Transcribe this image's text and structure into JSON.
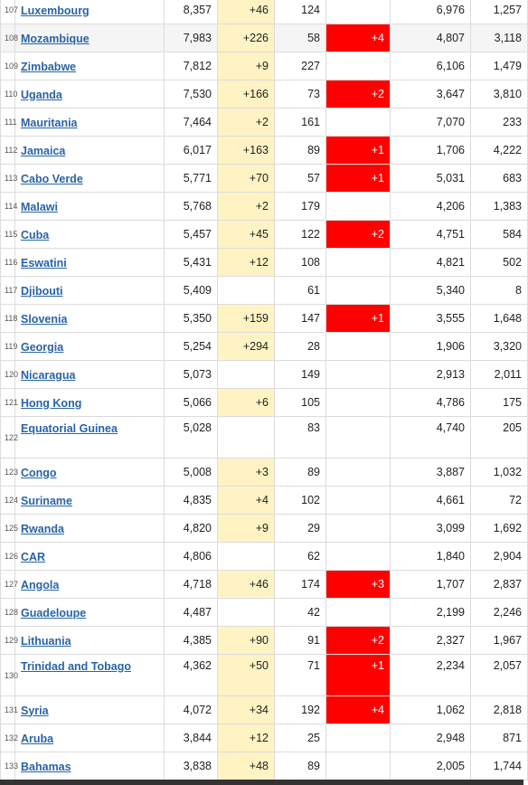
{
  "rows": [
    {
      "rank": "107",
      "country": "Luxembourg",
      "total_cases": "8,357",
      "new_cases": "+46",
      "total_deaths": "124",
      "new_deaths": "",
      "recovered": "6,976",
      "active": "1,257"
    },
    {
      "rank": "108",
      "country": "Mozambique",
      "total_cases": "7,983",
      "new_cases": "+226",
      "total_deaths": "58",
      "new_deaths": "+4",
      "recovered": "4,807",
      "active": "3,118"
    },
    {
      "rank": "109",
      "country": "Zimbabwe",
      "total_cases": "7,812",
      "new_cases": "+9",
      "total_deaths": "227",
      "new_deaths": "",
      "recovered": "6,106",
      "active": "1,479"
    },
    {
      "rank": "110",
      "country": "Uganda",
      "total_cases": "7,530",
      "new_cases": "+166",
      "total_deaths": "73",
      "new_deaths": "+2",
      "recovered": "3,647",
      "active": "3,810"
    },
    {
      "rank": "111",
      "country": "Mauritania",
      "total_cases": "7,464",
      "new_cases": "+2",
      "total_deaths": "161",
      "new_deaths": "",
      "recovered": "7,070",
      "active": "233"
    },
    {
      "rank": "112",
      "country": "Jamaica",
      "total_cases": "6,017",
      "new_cases": "+163",
      "total_deaths": "89",
      "new_deaths": "+1",
      "recovered": "1,706",
      "active": "4,222"
    },
    {
      "rank": "113",
      "country": "Cabo Verde",
      "total_cases": "5,771",
      "new_cases": "+70",
      "total_deaths": "57",
      "new_deaths": "+1",
      "recovered": "5,031",
      "active": "683"
    },
    {
      "rank": "114",
      "country": "Malawi",
      "total_cases": "5,768",
      "new_cases": "+2",
      "total_deaths": "179",
      "new_deaths": "",
      "recovered": "4,206",
      "active": "1,383"
    },
    {
      "rank": "115",
      "country": "Cuba",
      "total_cases": "5,457",
      "new_cases": "+45",
      "total_deaths": "122",
      "new_deaths": "+2",
      "recovered": "4,751",
      "active": "584"
    },
    {
      "rank": "116",
      "country": "Eswatini",
      "total_cases": "5,431",
      "new_cases": "+12",
      "total_deaths": "108",
      "new_deaths": "",
      "recovered": "4,821",
      "active": "502"
    },
    {
      "rank": "117",
      "country": "Djibouti",
      "total_cases": "5,409",
      "new_cases": "",
      "total_deaths": "61",
      "new_deaths": "",
      "recovered": "5,340",
      "active": "8"
    },
    {
      "rank": "118",
      "country": "Slovenia",
      "total_cases": "5,350",
      "new_cases": "+159",
      "total_deaths": "147",
      "new_deaths": "+1",
      "recovered": "3,555",
      "active": "1,648"
    },
    {
      "rank": "119",
      "country": "Georgia",
      "total_cases": "5,254",
      "new_cases": "+294",
      "total_deaths": "28",
      "new_deaths": "",
      "recovered": "1,906",
      "active": "3,320"
    },
    {
      "rank": "120",
      "country": "Nicaragua",
      "total_cases": "5,073",
      "new_cases": "",
      "total_deaths": "149",
      "new_deaths": "",
      "recovered": "2,913",
      "active": "2,011"
    },
    {
      "rank": "121",
      "country": "Hong Kong",
      "total_cases": "5,066",
      "new_cases": "+6",
      "total_deaths": "105",
      "new_deaths": "",
      "recovered": "4,786",
      "active": "175"
    },
    {
      "rank": "122",
      "country": "Equatorial Guinea",
      "total_cases": "5,028",
      "new_cases": "",
      "total_deaths": "83",
      "new_deaths": "",
      "recovered": "4,740",
      "active": "205",
      "two_line": true
    },
    {
      "rank": "123",
      "country": "Congo",
      "total_cases": "5,008",
      "new_cases": "+3",
      "total_deaths": "89",
      "new_deaths": "",
      "recovered": "3,887",
      "active": "1,032"
    },
    {
      "rank": "124",
      "country": "Suriname",
      "total_cases": "4,835",
      "new_cases": "+4",
      "total_deaths": "102",
      "new_deaths": "",
      "recovered": "4,661",
      "active": "72"
    },
    {
      "rank": "125",
      "country": "Rwanda",
      "total_cases": "4,820",
      "new_cases": "+9",
      "total_deaths": "29",
      "new_deaths": "",
      "recovered": "3,099",
      "active": "1,692"
    },
    {
      "rank": "126",
      "country": "CAR",
      "total_cases": "4,806",
      "new_cases": "",
      "total_deaths": "62",
      "new_deaths": "",
      "recovered": "1,840",
      "active": "2,904"
    },
    {
      "rank": "127",
      "country": "Angola",
      "total_cases": "4,718",
      "new_cases": "+46",
      "total_deaths": "174",
      "new_deaths": "+3",
      "recovered": "1,707",
      "active": "2,837"
    },
    {
      "rank": "128",
      "country": "Guadeloupe",
      "total_cases": "4,487",
      "new_cases": "",
      "total_deaths": "42",
      "new_deaths": "",
      "recovered": "2,199",
      "active": "2,246"
    },
    {
      "rank": "129",
      "country": "Lithuania",
      "total_cases": "4,385",
      "new_cases": "+90",
      "total_deaths": "91",
      "new_deaths": "+2",
      "recovered": "2,327",
      "active": "1,967"
    },
    {
      "rank": "130",
      "country": "Trinidad and Tobago",
      "total_cases": "4,362",
      "new_cases": "+50",
      "total_deaths": "71",
      "new_deaths": "+1",
      "recovered": "2,234",
      "active": "2,057",
      "two_line": true
    },
    {
      "rank": "131",
      "country": "Syria",
      "total_cases": "4,072",
      "new_cases": "+34",
      "total_deaths": "192",
      "new_deaths": "+4",
      "recovered": "1,062",
      "active": "2,818"
    },
    {
      "rank": "132",
      "country": "Aruba",
      "total_cases": "3,844",
      "new_cases": "+12",
      "total_deaths": "25",
      "new_deaths": "",
      "recovered": "2,948",
      "active": "871"
    },
    {
      "rank": "133",
      "country": "Bahamas",
      "total_cases": "3,838",
      "new_cases": "+48",
      "total_deaths": "89",
      "new_deaths": "",
      "recovered": "2,005",
      "active": "1,744"
    }
  ],
  "colors": {
    "link": "#2863a8",
    "new_cases_bg": "#fff3c4",
    "new_deaths_bg": "#ff0000",
    "row_hover": "#f5f5f5"
  }
}
